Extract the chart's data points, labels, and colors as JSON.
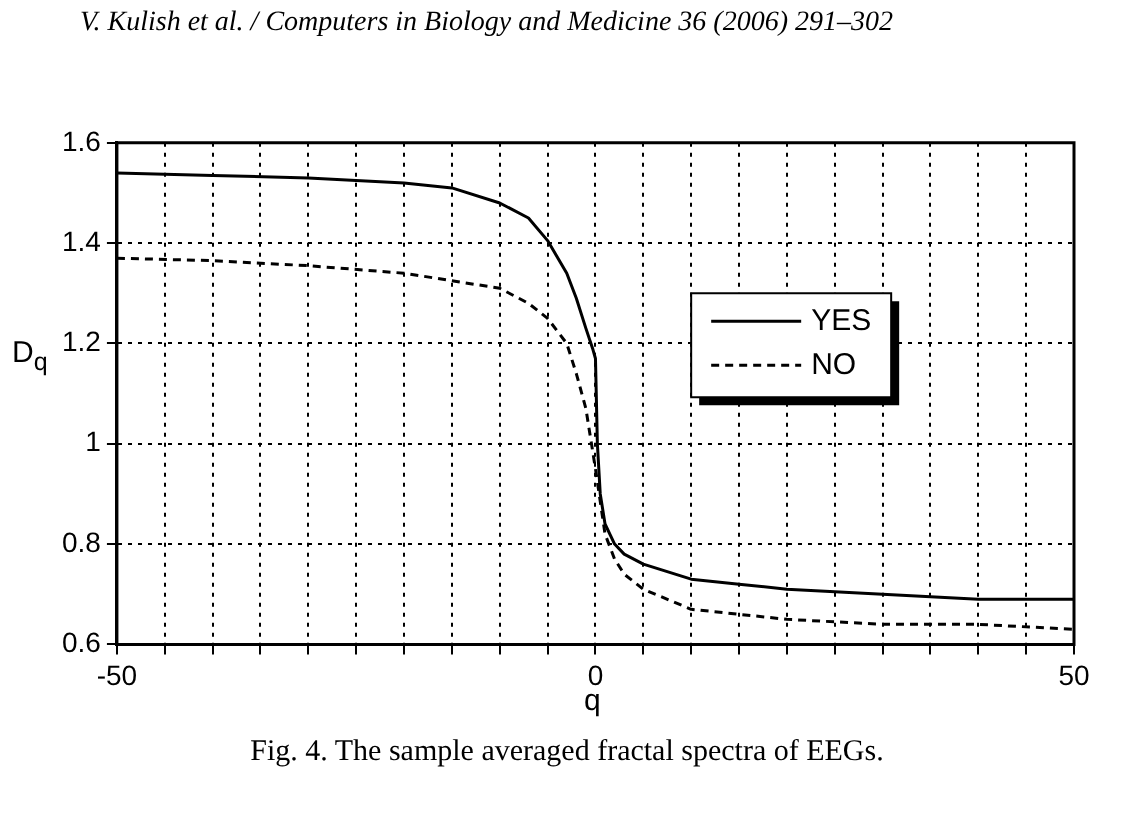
{
  "chart_data": {
    "type": "line",
    "annotations": [
      "V. Kulish et al. / Computers in Biology and Medicine 36 (2006) 291–302",
      "Fig. 4. The sample averaged fractal spectra of EEGs."
    ],
    "xlabel": "q",
    "ylabel": "D$_{q}$",
    "series": [
      {
        "name": "YES",
        "color": "#000000",
        "line_style": "solid",
        "x": [
          -50,
          -40,
          -30,
          -20,
          -15,
          -10,
          -7,
          -5,
          -3,
          -2,
          -1,
          -0.3,
          0,
          0.2,
          0.5,
          1,
          2,
          3,
          5,
          10,
          15,
          20,
          30,
          40,
          50
        ],
        "values": [
          1.54,
          1.535,
          1.53,
          1.52,
          1.51,
          1.48,
          1.45,
          1.405,
          1.34,
          1.29,
          1.23,
          1.19,
          1.17,
          1.0,
          0.9,
          0.84,
          0.8,
          0.78,
          0.76,
          0.73,
          0.72,
          0.71,
          0.7,
          0.69,
          0.69
        ]
      },
      {
        "name": "NO",
        "color": "#000000",
        "line_style": "dashed",
        "x": [
          -50,
          -40,
          -30,
          -20,
          -10,
          -7,
          -5,
          -3,
          -2,
          -1,
          0,
          1,
          2,
          3,
          5,
          10,
          20,
          30,
          40,
          50
        ],
        "values": [
          1.37,
          1.365,
          1.355,
          1.34,
          1.31,
          1.28,
          1.25,
          1.2,
          1.14,
          1.07,
          0.95,
          0.82,
          0.77,
          0.74,
          0.71,
          0.67,
          0.65,
          0.64,
          0.64,
          0.63
        ]
      }
    ],
    "xlim": [
      -50,
      50
    ],
    "xticks": [
      -50,
      {
        "value": -45,
        "label": null
      },
      {
        "value": -40,
        "label": null
      },
      {
        "value": -35,
        "label": null
      },
      {
        "value": -30,
        "label": null
      },
      {
        "value": -25,
        "label": null
      },
      {
        "value": -20,
        "label": null
      },
      {
        "value": -15,
        "label": null
      },
      {
        "value": -10,
        "label": null
      },
      {
        "value": -5,
        "label": null
      },
      0,
      {
        "value": 5,
        "label": null
      },
      {
        "value": 10,
        "label": null
      },
      {
        "value": 15,
        "label": null
      },
      {
        "value": 20,
        "label": null
      },
      {
        "value": 25,
        "label": null
      },
      {
        "value": 30,
        "label": null
      },
      {
        "value": 35,
        "label": null
      },
      {
        "value": 40,
        "label": null
      },
      {
        "value": 45,
        "label": null
      },
      50
    ],
    "ylim": [
      0.6,
      1.6
    ],
    "yticks": [
      0.6,
      0.8,
      1,
      1.2,
      1.4,
      1.6
    ],
    "grid": true,
    "legend": "top right",
    "marker": "none"
  }
}
